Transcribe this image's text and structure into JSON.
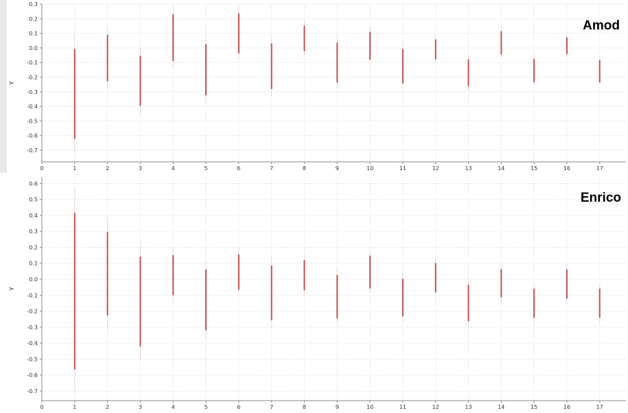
{
  "chart_data": [
    {
      "type": "scatter",
      "title": "Amod",
      "xlabel": "",
      "ylabel": "Y",
      "xlim": [
        0,
        17.8
      ],
      "ylim": [
        -0.78,
        0.3
      ],
      "xticks": [
        0,
        1,
        2,
        3,
        4,
        5,
        6,
        7,
        8,
        9,
        10,
        11,
        12,
        13,
        14,
        15,
        16,
        17
      ],
      "yticks": [
        0.3,
        0.2,
        0.1,
        0.0,
        -0.1,
        -0.2,
        -0.3,
        -0.4,
        -0.5,
        -0.6,
        -0.7
      ],
      "grid": true,
      "color": "#c0504d",
      "series": [
        {
          "x": 1,
          "y_min": -0.72,
          "y_max": 0.09
        },
        {
          "x": 2,
          "y_min": -0.28,
          "y_max": 0.14
        },
        {
          "x": 3,
          "y_min": -0.45,
          "y_max": 0.0
        },
        {
          "x": 4,
          "y_min": -0.14,
          "y_max": 0.28
        },
        {
          "x": 5,
          "y_min": -0.38,
          "y_max": 0.08
        },
        {
          "x": 6,
          "y_min": -0.08,
          "y_max": 0.28
        },
        {
          "x": 7,
          "y_min": -0.33,
          "y_max": 0.08
        },
        {
          "x": 8,
          "y_min": -0.05,
          "y_max": 0.18
        },
        {
          "x": 9,
          "y_min": -0.28,
          "y_max": 0.08
        },
        {
          "x": 10,
          "y_min": -0.11,
          "y_max": 0.14
        },
        {
          "x": 11,
          "y_min": -0.28,
          "y_max": 0.03
        },
        {
          "x": 12,
          "y_min": -0.1,
          "y_max": 0.08
        },
        {
          "x": 13,
          "y_min": -0.29,
          "y_max": -0.05
        },
        {
          "x": 14,
          "y_min": -0.07,
          "y_max": 0.14
        },
        {
          "x": 15,
          "y_min": -0.26,
          "y_max": -0.05
        },
        {
          "x": 16,
          "y_min": -0.06,
          "y_max": 0.09
        },
        {
          "x": 17,
          "y_min": -0.26,
          "y_max": -0.06
        }
      ]
    },
    {
      "type": "scatter",
      "title": "Enrico",
      "xlabel": "",
      "ylabel": "Y",
      "xlim": [
        0,
        17.8
      ],
      "ylim": [
        -0.76,
        0.64
      ],
      "xticks": [
        0,
        1,
        2,
        3,
        4,
        5,
        6,
        7,
        8,
        9,
        10,
        11,
        12,
        13,
        14,
        15,
        16,
        17
      ],
      "yticks": [
        0.6,
        0.5,
        0.4,
        0.3,
        0.2,
        0.1,
        0.0,
        -0.1,
        -0.2,
        -0.3,
        -0.4,
        -0.5,
        -0.6,
        -0.7
      ],
      "grid": true,
      "color": "#c0504d",
      "series": [
        {
          "x": 1,
          "y_min": -0.72,
          "y_max": 0.57
        },
        {
          "x": 2,
          "y_min": -0.31,
          "y_max": 0.38
        },
        {
          "x": 3,
          "y_min": -0.51,
          "y_max": 0.23
        },
        {
          "x": 4,
          "y_min": -0.14,
          "y_max": 0.19
        },
        {
          "x": 5,
          "y_min": -0.38,
          "y_max": 0.12
        },
        {
          "x": 6,
          "y_min": -0.1,
          "y_max": 0.19
        },
        {
          "x": 7,
          "y_min": -0.31,
          "y_max": 0.14
        },
        {
          "x": 8,
          "y_min": -0.1,
          "y_max": 0.15
        },
        {
          "x": 9,
          "y_min": -0.29,
          "y_max": 0.07
        },
        {
          "x": 10,
          "y_min": -0.09,
          "y_max": 0.18
        },
        {
          "x": 11,
          "y_min": -0.27,
          "y_max": 0.04
        },
        {
          "x": 12,
          "y_min": -0.11,
          "y_max": 0.13
        },
        {
          "x": 13,
          "y_min": -0.3,
          "y_max": 0.0
        },
        {
          "x": 14,
          "y_min": -0.14,
          "y_max": 0.09
        },
        {
          "x": 15,
          "y_min": -0.27,
          "y_max": -0.03
        },
        {
          "x": 16,
          "y_min": -0.15,
          "y_max": 0.09
        },
        {
          "x": 17,
          "y_min": -0.27,
          "y_max": -0.03
        }
      ]
    }
  ]
}
